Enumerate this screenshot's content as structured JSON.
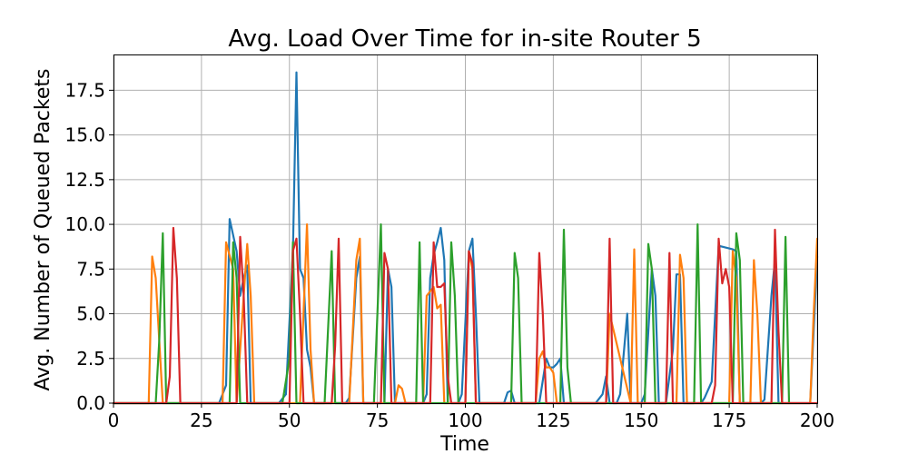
{
  "chart_data": {
    "type": "line",
    "title": "Avg. Load Over Time for in-site Router 5",
    "xlabel": "Time",
    "ylabel": "Avg. Number of Queued Packets",
    "xlim": [
      0,
      200
    ],
    "ylim": [
      0,
      19.5
    ],
    "grid": true,
    "x_ticks": [
      0,
      25,
      50,
      75,
      100,
      125,
      150,
      175,
      200
    ],
    "x_tick_labels": [
      "0",
      "25",
      "50",
      "75",
      "100",
      "125",
      "150",
      "175",
      "200"
    ],
    "y_ticks": [
      0,
      2.5,
      5,
      7.5,
      10,
      12.5,
      15,
      17.5
    ],
    "y_tick_labels": [
      "0.0",
      "2.5",
      "5.0",
      "7.5",
      "10.0",
      "12.5",
      "15.0",
      "17.5"
    ],
    "series": [
      {
        "color": "#1f77b4",
        "points": [
          [
            0,
            0
          ],
          [
            30,
            0
          ],
          [
            32,
            1
          ],
          [
            33,
            10.3
          ],
          [
            35,
            8.5
          ],
          [
            36,
            6
          ],
          [
            37,
            7
          ],
          [
            38,
            7.7
          ],
          [
            39,
            0
          ],
          [
            47,
            0
          ],
          [
            49,
            0.5
          ],
          [
            51,
            8.5
          ],
          [
            52,
            18.5
          ],
          [
            53,
            7.5
          ],
          [
            54,
            7
          ],
          [
            55,
            3
          ],
          [
            56,
            2
          ],
          [
            57,
            0
          ],
          [
            66,
            0
          ],
          [
            67,
            0.3
          ],
          [
            69,
            7
          ],
          [
            70,
            8.2
          ],
          [
            71,
            0
          ],
          [
            77,
            0
          ],
          [
            78,
            7.5
          ],
          [
            79,
            6.5
          ],
          [
            80,
            0
          ],
          [
            88,
            0
          ],
          [
            89,
            0.5
          ],
          [
            90,
            7
          ],
          [
            91,
            8.3
          ],
          [
            92,
            9
          ],
          [
            93,
            9.8
          ],
          [
            94,
            8
          ],
          [
            95,
            0
          ],
          [
            98,
            0
          ],
          [
            99,
            0.5
          ],
          [
            101,
            8.5
          ],
          [
            102,
            9.2
          ],
          [
            103,
            5
          ],
          [
            104,
            0
          ],
          [
            111,
            0
          ],
          [
            112,
            0.6
          ],
          [
            113,
            0.7
          ],
          [
            114,
            0
          ],
          [
            121,
            0
          ],
          [
            123,
            2.5
          ],
          [
            124,
            2
          ],
          [
            125,
            2
          ],
          [
            126,
            2.2
          ],
          [
            127,
            2.5
          ],
          [
            128,
            0
          ],
          [
            137,
            0
          ],
          [
            139,
            0.5
          ],
          [
            140,
            1.5
          ],
          [
            141,
            0
          ],
          [
            143,
            0
          ],
          [
            144,
            0.5
          ],
          [
            146,
            5
          ],
          [
            147,
            0
          ],
          [
            150,
            0
          ],
          [
            151,
            0.5
          ],
          [
            153,
            7.5
          ],
          [
            154,
            6
          ],
          [
            155,
            0
          ],
          [
            157,
            0
          ],
          [
            159,
            3
          ],
          [
            160,
            7.2
          ],
          [
            161,
            7.2
          ],
          [
            162,
            0
          ],
          [
            167,
            0
          ],
          [
            168,
            0.3
          ],
          [
            170,
            1.2
          ],
          [
            172,
            8.8
          ],
          [
            176,
            8.6
          ],
          [
            177,
            8.5
          ],
          [
            178,
            0
          ],
          [
            184,
            0
          ],
          [
            185,
            0.2
          ],
          [
            187,
            6
          ],
          [
            188,
            8
          ],
          [
            189,
            0
          ],
          [
            198,
            0
          ],
          [
            200,
            8.2
          ]
        ]
      },
      {
        "color": "#ff7f0e",
        "points": [
          [
            0,
            0
          ],
          [
            10,
            0
          ],
          [
            11,
            8.2
          ],
          [
            12,
            7
          ],
          [
            13,
            3.5
          ],
          [
            14,
            0
          ],
          [
            31,
            0
          ],
          [
            32,
            9
          ],
          [
            34,
            7.5
          ],
          [
            35,
            0
          ],
          [
            37,
            6
          ],
          [
            38,
            8.9
          ],
          [
            39,
            6
          ],
          [
            40,
            0
          ],
          [
            53,
            0
          ],
          [
            55,
            10
          ],
          [
            56,
            3
          ],
          [
            57,
            0
          ],
          [
            67,
            0
          ],
          [
            69,
            8
          ],
          [
            70,
            9.2
          ],
          [
            71,
            0
          ],
          [
            80,
            0
          ],
          [
            81,
            1
          ],
          [
            82,
            0.8
          ],
          [
            83,
            0
          ],
          [
            88,
            0
          ],
          [
            89,
            6
          ],
          [
            91,
            6.5
          ],
          [
            92,
            5.3
          ],
          [
            93,
            5.5
          ],
          [
            94,
            0
          ],
          [
            100,
            0
          ],
          [
            101,
            8.5
          ],
          [
            102,
            7.5
          ],
          [
            103,
            0
          ],
          [
            120,
            0
          ],
          [
            121,
            2.5
          ],
          [
            122,
            2.9
          ],
          [
            123,
            2
          ],
          [
            124,
            2
          ],
          [
            125,
            1.7
          ],
          [
            126,
            0
          ],
          [
            140,
            0
          ],
          [
            141,
            5
          ],
          [
            147,
            0
          ],
          [
            148,
            8.6
          ],
          [
            149,
            0
          ],
          [
            160,
            0
          ],
          [
            161,
            8.3
          ],
          [
            162,
            7
          ],
          [
            163,
            0
          ],
          [
            175,
            0
          ],
          [
            176,
            8.5
          ],
          [
            177,
            7
          ],
          [
            178,
            0
          ],
          [
            181,
            0
          ],
          [
            182,
            8
          ],
          [
            183,
            5
          ],
          [
            184,
            0
          ],
          [
            198,
            0
          ],
          [
            199,
            5
          ],
          [
            200,
            9.2
          ]
        ]
      },
      {
        "color": "#2ca02c",
        "points": [
          [
            0,
            0
          ],
          [
            12,
            0
          ],
          [
            13,
            3.5
          ],
          [
            14,
            9.5
          ],
          [
            15,
            0
          ],
          [
            33,
            0
          ],
          [
            34,
            9
          ],
          [
            35,
            7
          ],
          [
            36,
            0
          ],
          [
            48,
            0
          ],
          [
            50,
            2.5
          ],
          [
            51,
            9
          ],
          [
            52,
            0
          ],
          [
            60,
            0
          ],
          [
            62,
            8.5
          ],
          [
            63,
            0
          ],
          [
            74,
            0
          ],
          [
            76,
            10
          ],
          [
            77,
            0
          ],
          [
            86,
            0
          ],
          [
            87,
            9
          ],
          [
            88,
            0
          ],
          [
            95,
            0
          ],
          [
            96,
            9
          ],
          [
            97,
            6
          ],
          [
            98,
            0
          ],
          [
            113,
            0
          ],
          [
            114,
            8.4
          ],
          [
            115,
            7
          ],
          [
            116,
            0
          ],
          [
            127,
            0
          ],
          [
            128,
            9.7
          ],
          [
            129,
            2
          ],
          [
            130,
            0
          ],
          [
            151,
            0
          ],
          [
            152,
            8.9
          ],
          [
            153,
            7.5
          ],
          [
            154,
            0
          ],
          [
            165,
            0
          ],
          [
            166,
            10
          ],
          [
            167,
            0
          ],
          [
            176,
            0
          ],
          [
            177,
            9.5
          ],
          [
            178,
            8
          ],
          [
            179,
            0
          ],
          [
            190,
            0
          ],
          [
            191,
            9.3
          ],
          [
            192,
            0
          ]
        ]
      },
      {
        "color": "#d62728",
        "points": [
          [
            0,
            0
          ],
          [
            15,
            0
          ],
          [
            16,
            1.5
          ],
          [
            17,
            9.8
          ],
          [
            18,
            7
          ],
          [
            19,
            0
          ],
          [
            35,
            0
          ],
          [
            36,
            9.3
          ],
          [
            37,
            6
          ],
          [
            38,
            0
          ],
          [
            50,
            0
          ],
          [
            51,
            8.5
          ],
          [
            52,
            9.2
          ],
          [
            53,
            5
          ],
          [
            54,
            0
          ],
          [
            62,
            0
          ],
          [
            63,
            3.2
          ],
          [
            64,
            9.2
          ],
          [
            65,
            0
          ],
          [
            76,
            0
          ],
          [
            77,
            8.4
          ],
          [
            78,
            7.5
          ],
          [
            79,
            0
          ],
          [
            90,
            0
          ],
          [
            91,
            9
          ],
          [
            92,
            6.5
          ],
          [
            93,
            6.5
          ],
          [
            94,
            6.7
          ],
          [
            95,
            1.5
          ],
          [
            96,
            0
          ],
          [
            100,
            0
          ],
          [
            101,
            8.5
          ],
          [
            102,
            7.8
          ],
          [
            103,
            0
          ],
          [
            120,
            0
          ],
          [
            121,
            8.4
          ],
          [
            122,
            5
          ],
          [
            123,
            0
          ],
          [
            140,
            0
          ],
          [
            141,
            9.2
          ],
          [
            142,
            0
          ],
          [
            157,
            0
          ],
          [
            158,
            8.4
          ],
          [
            159,
            0
          ],
          [
            170,
            0
          ],
          [
            171,
            1
          ],
          [
            172,
            9.2
          ],
          [
            173,
            6.7
          ],
          [
            174,
            7.5
          ],
          [
            175,
            6.5
          ],
          [
            176,
            0
          ],
          [
            187,
            0
          ],
          [
            188,
            9.7
          ],
          [
            189,
            4
          ],
          [
            190,
            0
          ],
          [
            200,
            0
          ]
        ]
      }
    ]
  }
}
